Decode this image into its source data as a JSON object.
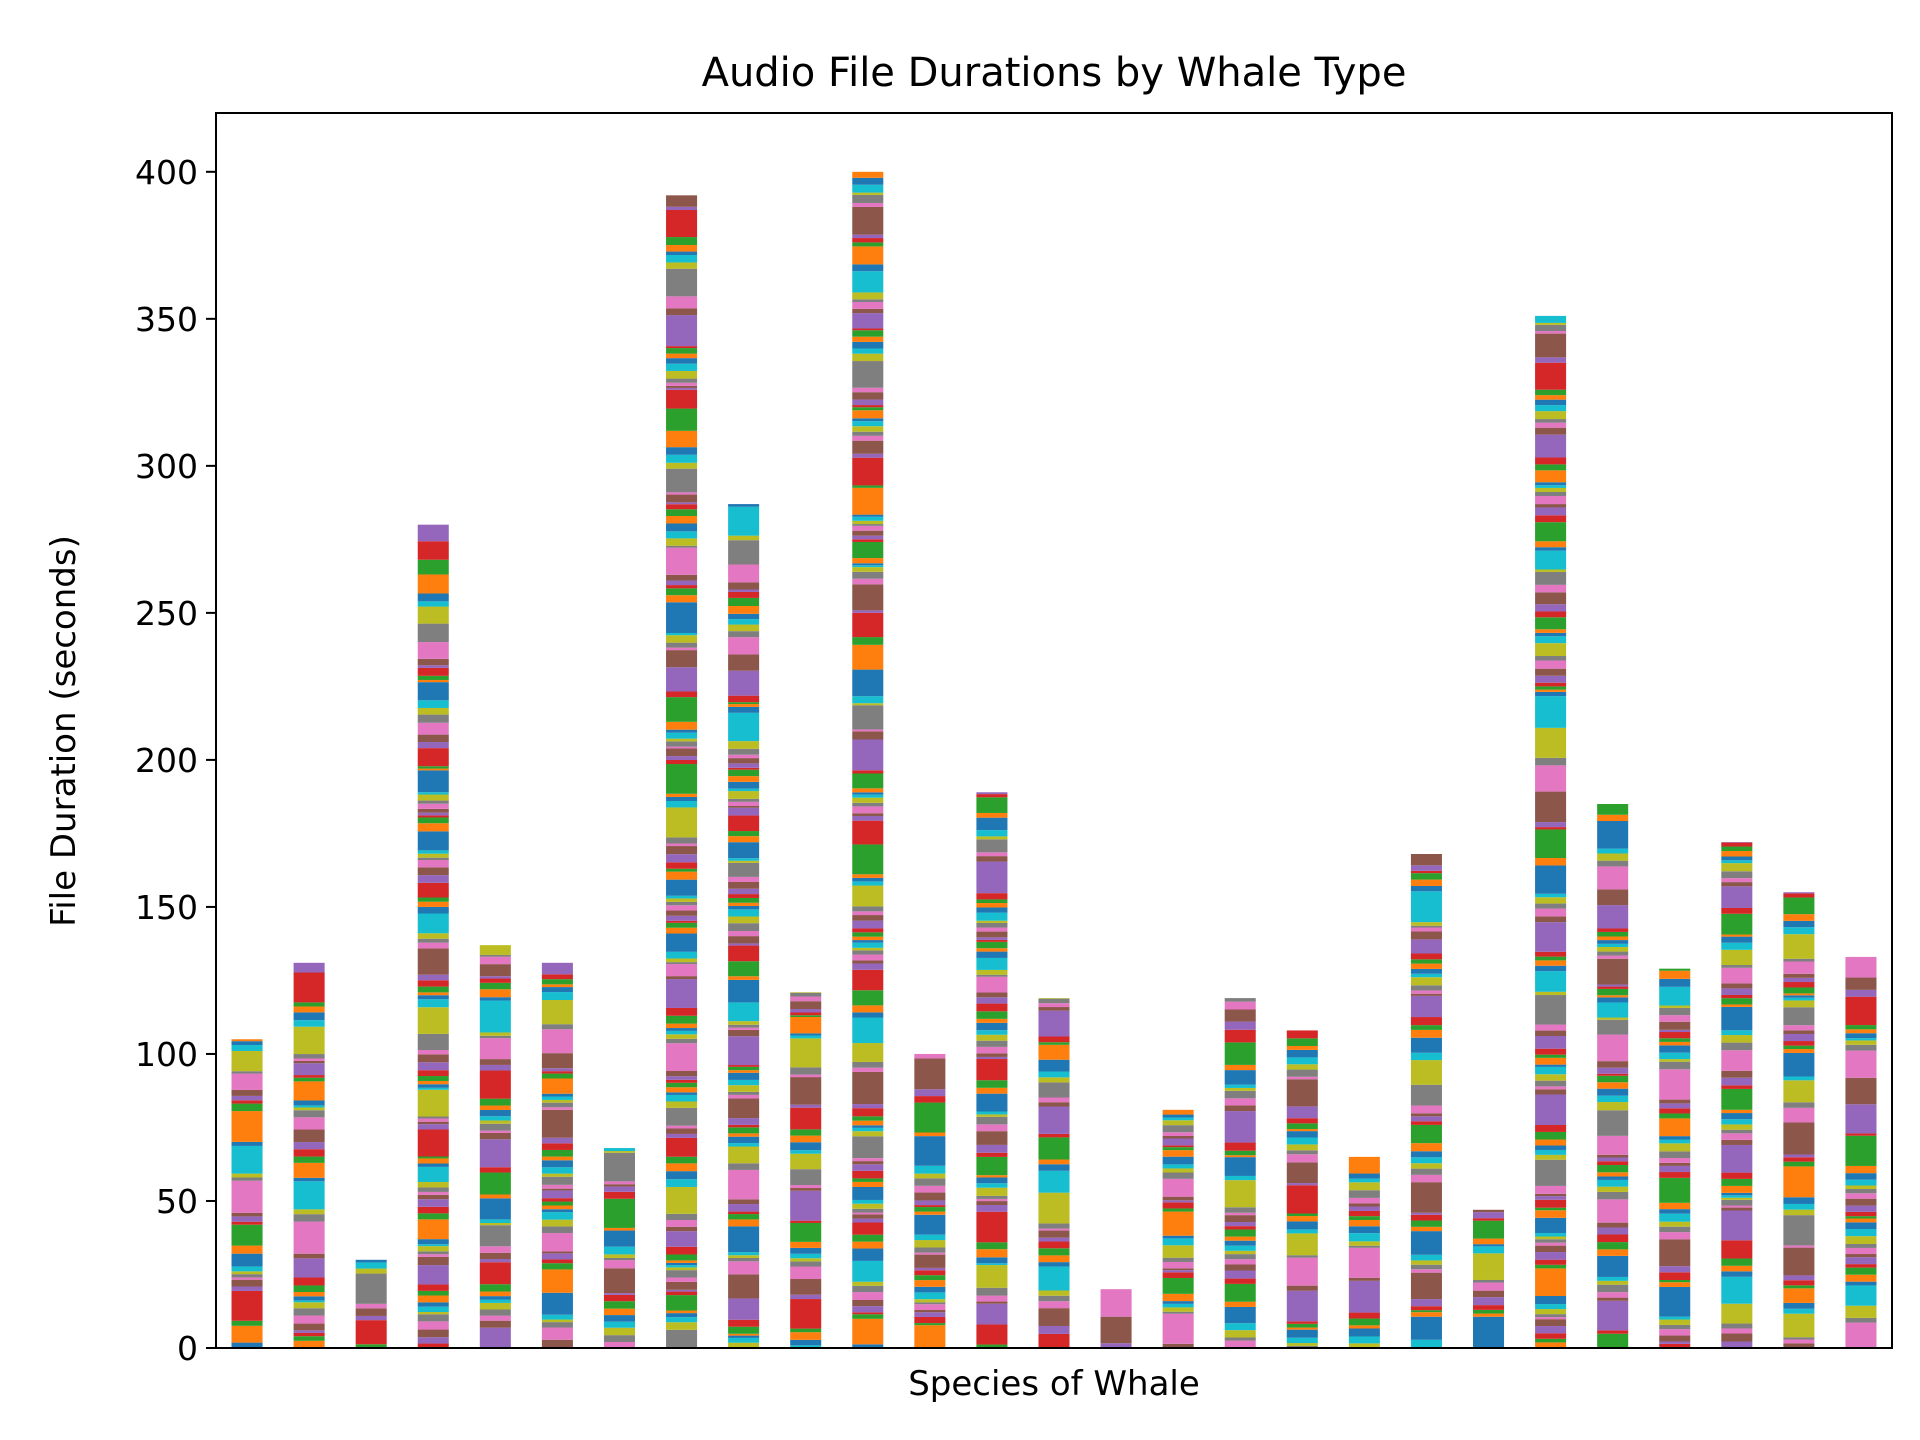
{
  "chart_data": {
    "type": "bar",
    "stacked": true,
    "title": "Audio File Durations by Whale Type",
    "xlabel": "Species of Whale",
    "ylabel": "File Duration (seconds)",
    "ylim": [
      0,
      420
    ],
    "yticks": [
      0,
      50,
      100,
      150,
      200,
      250,
      300,
      350,
      400
    ],
    "grid": false,
    "legend": "none",
    "bar_totals": [
      105,
      131,
      30,
      280,
      137,
      131,
      68,
      392,
      287,
      121,
      400,
      100,
      189,
      119,
      20,
      81,
      119,
      108,
      65,
      168,
      47,
      351,
      185,
      129,
      172,
      155,
      133
    ],
    "segment_palette": [
      "#1f77b4",
      "#ff7f0e",
      "#2ca02c",
      "#d62728",
      "#9467bd",
      "#8c564b",
      "#e377c2",
      "#7f7f7f",
      "#bcbd22",
      "#17becf"
    ]
  }
}
